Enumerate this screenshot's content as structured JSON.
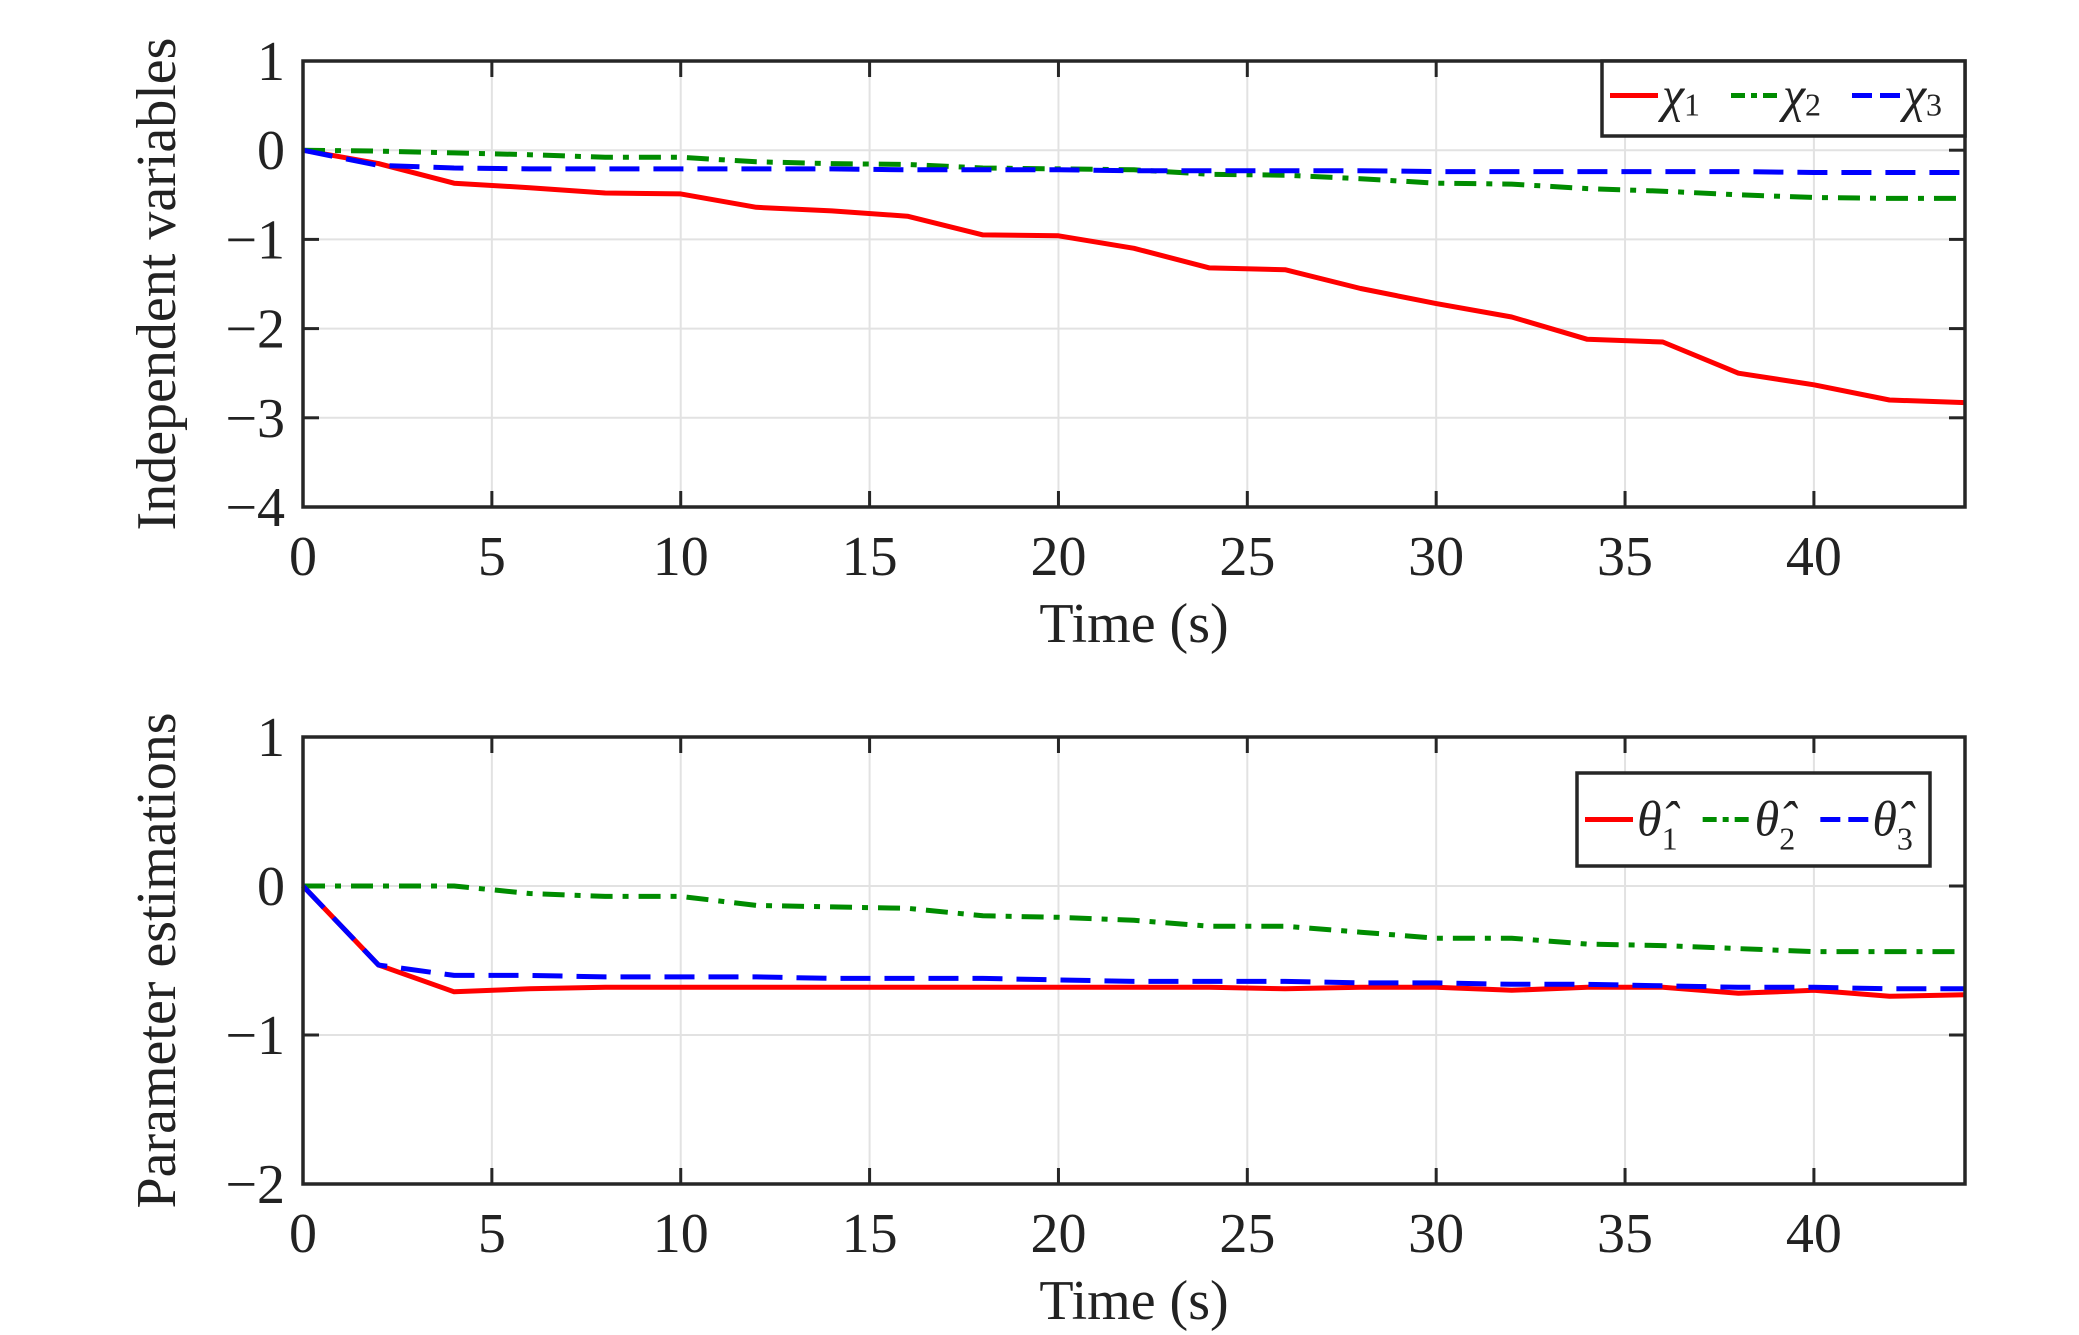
{
  "chart_data": [
    {
      "type": "line",
      "xlabel": "Time (s)",
      "ylabel": "Independent variables",
      "xlim": [
        0,
        44
      ],
      "ylim": [
        -4,
        1
      ],
      "xticks": [
        0,
        5,
        10,
        15,
        20,
        25,
        30,
        35,
        40
      ],
      "yticks": [
        1,
        0,
        -1,
        -2,
        -3,
        -4
      ],
      "ytick_labels": [
        "1",
        "0",
        "−1",
        "−2",
        "−3",
        "−4"
      ],
      "grid": true,
      "legend_position": "top-right",
      "x": [
        0,
        2,
        4,
        6,
        8,
        10,
        12,
        14,
        16,
        18,
        20,
        22,
        24,
        26,
        28,
        30,
        32,
        34,
        36,
        38,
        40,
        42,
        44
      ],
      "series": [
        {
          "name": "χ",
          "sub": "1",
          "color": "#ff0000",
          "dash": "solid",
          "values": [
            0,
            -0.15,
            -0.37,
            -0.42,
            -0.48,
            -0.49,
            -0.64,
            -0.68,
            -0.74,
            -0.95,
            -0.96,
            -1.1,
            -1.32,
            -1.34,
            -1.55,
            -1.72,
            -1.87,
            -2.12,
            -2.15,
            -2.5,
            -2.63,
            -2.8,
            -2.83
          ]
        },
        {
          "name": "χ",
          "sub": "2",
          "color": "#008c00",
          "dash": "dashdot",
          "values": [
            0,
            -0.01,
            -0.03,
            -0.05,
            -0.08,
            -0.08,
            -0.13,
            -0.15,
            -0.16,
            -0.2,
            -0.21,
            -0.22,
            -0.27,
            -0.28,
            -0.32,
            -0.37,
            -0.38,
            -0.43,
            -0.46,
            -0.5,
            -0.53,
            -0.54,
            -0.54
          ]
        },
        {
          "name": "χ",
          "sub": "3",
          "color": "#0000ff",
          "dash": "dashed",
          "values": [
            0,
            -0.17,
            -0.2,
            -0.21,
            -0.21,
            -0.21,
            -0.21,
            -0.21,
            -0.22,
            -0.22,
            -0.22,
            -0.23,
            -0.23,
            -0.23,
            -0.23,
            -0.24,
            -0.24,
            -0.24,
            -0.24,
            -0.24,
            -0.25,
            -0.25,
            -0.25
          ]
        }
      ]
    },
    {
      "type": "line",
      "xlabel": "Time (s)",
      "ylabel": "Parameter estimations",
      "xlim": [
        0,
        44
      ],
      "ylim": [
        -2,
        1
      ],
      "xticks": [
        0,
        5,
        10,
        15,
        20,
        25,
        30,
        35,
        40
      ],
      "yticks": [
        1,
        0,
        -1,
        -2
      ],
      "ytick_labels": [
        "1",
        "0",
        "−1",
        "−2"
      ],
      "grid": true,
      "legend_position": "top-right",
      "x": [
        0,
        2,
        4,
        6,
        8,
        10,
        12,
        14,
        16,
        18,
        20,
        22,
        24,
        26,
        28,
        30,
        32,
        34,
        36,
        38,
        40,
        42,
        44
      ],
      "series": [
        {
          "name": "θ̂",
          "sub": "1",
          "color": "#ff0000",
          "dash": "solid",
          "values": [
            0,
            -0.53,
            -0.71,
            -0.69,
            -0.68,
            -0.68,
            -0.68,
            -0.68,
            -0.68,
            -0.68,
            -0.68,
            -0.68,
            -0.68,
            -0.69,
            -0.68,
            -0.68,
            -0.7,
            -0.68,
            -0.68,
            -0.72,
            -0.7,
            -0.74,
            -0.73
          ]
        },
        {
          "name": "θ̂",
          "sub": "2",
          "color": "#008c00",
          "dash": "dashdot",
          "values": [
            0,
            0,
            0,
            -0.05,
            -0.07,
            -0.07,
            -0.13,
            -0.14,
            -0.15,
            -0.2,
            -0.21,
            -0.23,
            -0.27,
            -0.27,
            -0.31,
            -0.35,
            -0.35,
            -0.39,
            -0.4,
            -0.42,
            -0.44,
            -0.44,
            -0.44
          ]
        },
        {
          "name": "θ̂",
          "sub": "3",
          "color": "#0000ff",
          "dash": "dashed",
          "values": [
            0,
            -0.53,
            -0.6,
            -0.6,
            -0.61,
            -0.61,
            -0.61,
            -0.62,
            -0.62,
            -0.62,
            -0.63,
            -0.64,
            -0.64,
            -0.64,
            -0.65,
            -0.65,
            -0.66,
            -0.66,
            -0.67,
            -0.68,
            -0.68,
            -0.69,
            -0.69
          ]
        }
      ]
    }
  ]
}
